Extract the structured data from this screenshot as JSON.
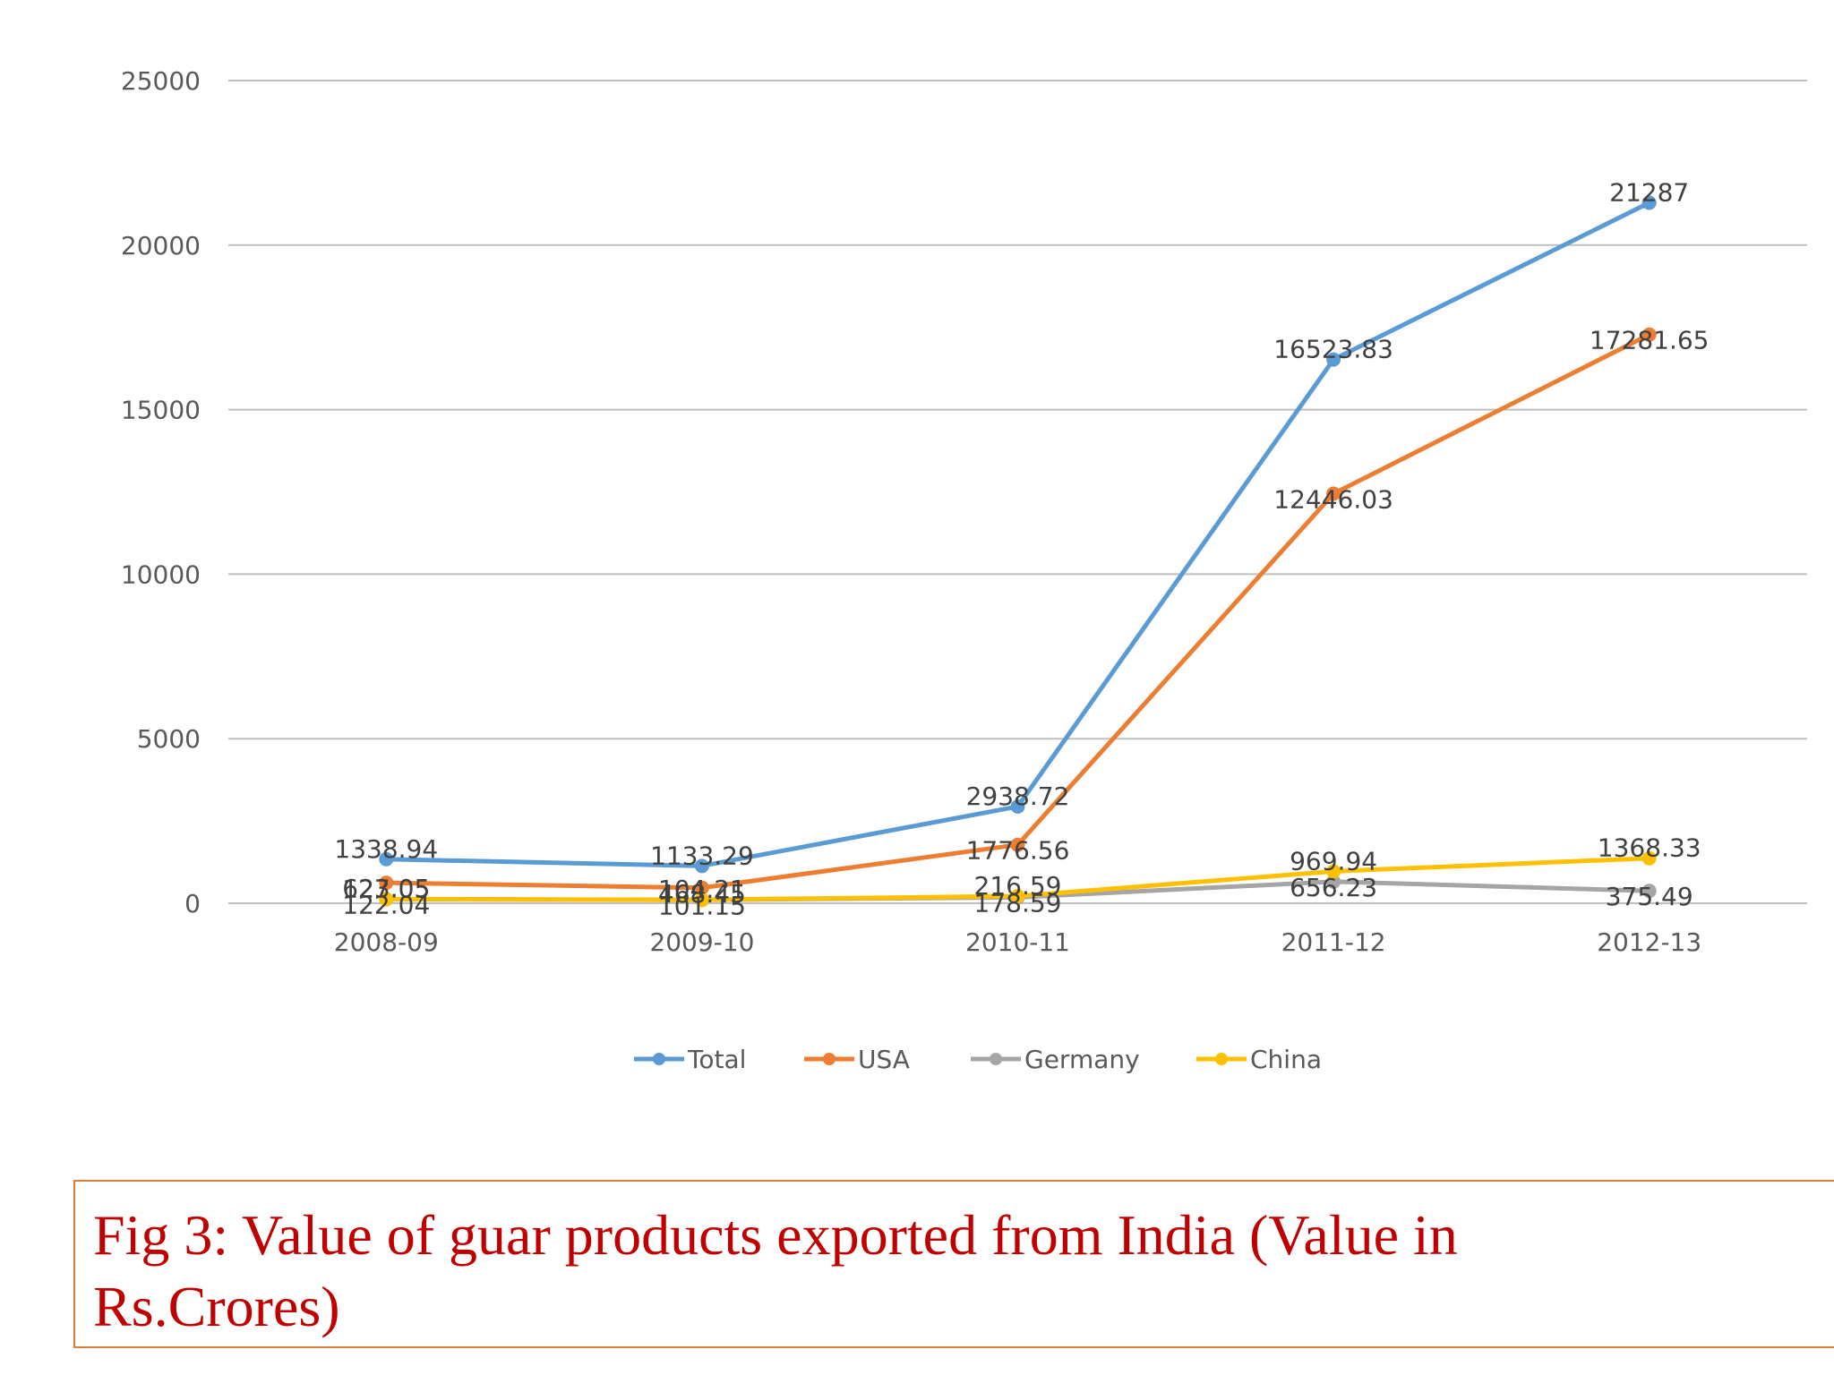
{
  "caption": "Fig 3: Value of guar products exported from India (Value in Rs.Crores)",
  "chart_data": {
    "type": "line",
    "title": "",
    "xlabel": "",
    "ylabel": "",
    "categories": [
      "2008-09",
      "2009-10",
      "2010-11",
      "2011-12",
      "2012-13"
    ],
    "ylim": [
      0,
      25000
    ],
    "yticks": [
      0,
      5000,
      10000,
      15000,
      20000,
      25000
    ],
    "grid": true,
    "legend_position": "bottom",
    "series": [
      {
        "name": "Total",
        "color": "#5b9bd5",
        "values": [
          1338.94,
          1133.29,
          2938.72,
          16523.83,
          21287
        ],
        "labels": [
          "1338.94",
          "1133.29",
          "2938.72",
          "16523.83",
          "21287"
        ]
      },
      {
        "name": "USA",
        "color": "#ed7d31",
        "values": [
          623.05,
          468.45,
          1776.56,
          12446.03,
          17281.65
        ],
        "labels": [
          "623.05",
          "468.45",
          "1776.56",
          "12446.03",
          "17281.65"
        ]
      },
      {
        "name": "Germany",
        "color": "#a5a5a5",
        "values": [
          122.04,
          101.15,
          178.59,
          656.23,
          375.49
        ],
        "labels": [
          "122.04",
          "101.15",
          "178.59",
          "656.23",
          "375.49"
        ]
      },
      {
        "name": "China",
        "color": "#ffc000",
        "values": [
          127.05,
          104.21,
          216.59,
          969.94,
          1368.33
        ],
        "labels": [
          "127.05",
          "104.21",
          "216.59",
          "969.94",
          "1368.33"
        ]
      }
    ]
  }
}
